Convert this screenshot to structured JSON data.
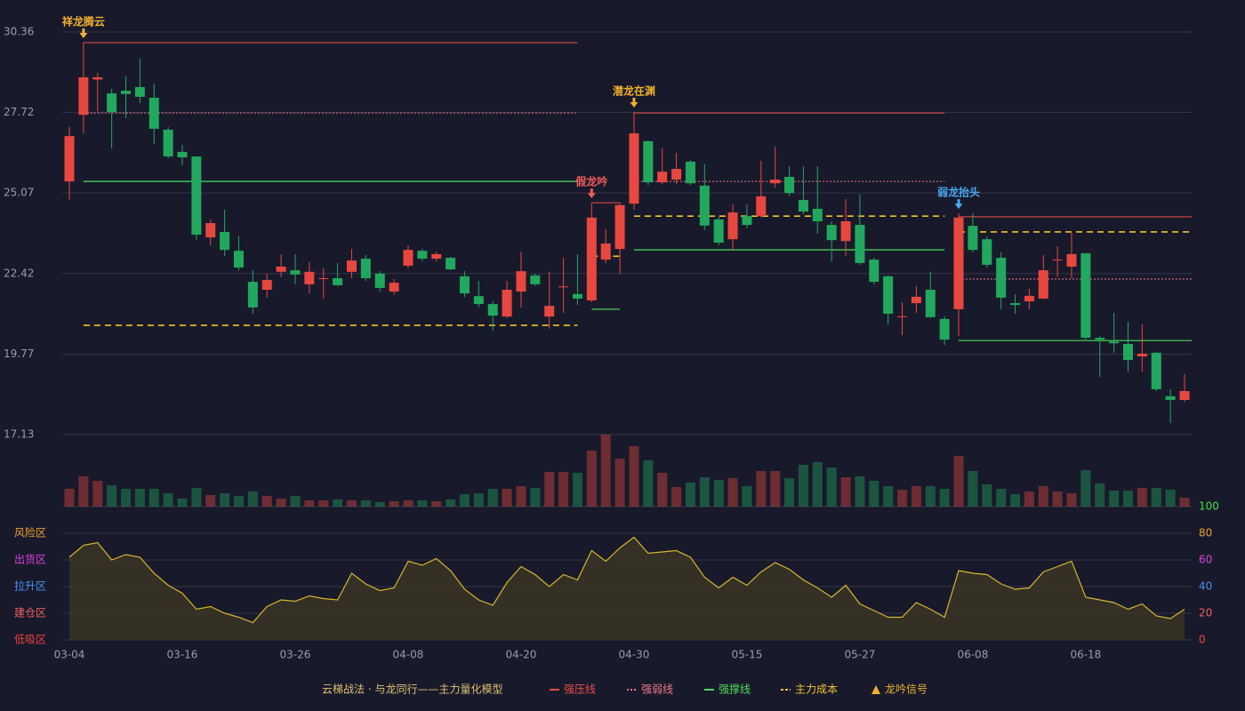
{
  "chart_data": [
    {
      "type": "candlestick",
      "categories": [
        "03-04",
        null,
        null,
        null,
        null,
        null,
        null,
        null,
        "03-16",
        null,
        null,
        null,
        null,
        null,
        null,
        null,
        "03-26",
        null,
        null,
        null,
        null,
        null,
        null,
        null,
        "04-08",
        null,
        null,
        null,
        null,
        null,
        null,
        null,
        "04-20",
        null,
        null,
        null,
        null,
        null,
        null,
        null,
        "04-30",
        null,
        null,
        null,
        null,
        null,
        null,
        null,
        "05-15",
        null,
        null,
        null,
        null,
        null,
        null,
        null,
        "05-27",
        null,
        null,
        null,
        null,
        null,
        null,
        null,
        "06-08",
        null,
        null,
        null,
        null,
        null,
        null,
        null,
        "06-18",
        null,
        null,
        null,
        null,
        null,
        null,
        null
      ],
      "open": [
        25.45,
        27.64,
        28.8,
        28.34,
        28.43,
        28.55,
        28.2,
        27.15,
        26.42,
        26.27,
        23.61,
        23.79,
        23.17,
        22.15,
        21.89,
        22.48,
        22.53,
        22.07,
        22.24,
        22.27,
        22.48,
        22.91,
        22.42,
        21.83,
        22.68,
        23.17,
        22.91,
        22.94,
        22.33,
        21.68,
        21.42,
        21.01,
        21.83,
        22.36,
        21.01,
        21.97,
        21.75,
        21.54,
        22.88,
        23.23,
        24.72,
        26.77,
        25.42,
        25.51,
        26.1,
        25.31,
        24.2,
        23.55,
        24.31,
        24.31,
        25.39,
        25.6,
        24.84,
        24.55,
        24.02,
        23.49,
        24.02,
        22.88,
        22.33,
        21.0,
        21.45,
        21.89,
        20.93,
        21.25,
        23.99,
        23.55,
        22.94,
        21.45,
        21.51,
        21.6,
        22.86,
        22.65,
        23.09,
        20.31,
        20.19,
        20.11,
        19.7,
        19.82,
        18.39,
        18.27
      ],
      "close": [
        26.94,
        28.87,
        28.87,
        27.73,
        28.32,
        28.23,
        27.18,
        26.27,
        26.24,
        23.7,
        24.08,
        23.2,
        22.62,
        21.31,
        22.21,
        22.65,
        22.39,
        22.48,
        22.27,
        22.04,
        22.85,
        22.27,
        21.95,
        22.12,
        23.2,
        22.91,
        23.06,
        22.56,
        21.77,
        21.42,
        21.04,
        21.89,
        22.5,
        22.07,
        21.36,
        22.0,
        21.6,
        24.26,
        23.41,
        24.67,
        27.03,
        25.42,
        25.77,
        25.86,
        25.39,
        24.0,
        23.44,
        24.43,
        24.02,
        24.96,
        25.51,
        25.07,
        24.46,
        24.14,
        23.52,
        24.14,
        22.77,
        22.15,
        21.1,
        21.02,
        21.66,
        20.99,
        20.25,
        24.26,
        23.2,
        22.71,
        21.63,
        21.39,
        21.69,
        22.53,
        22.88,
        23.06,
        20.31,
        20.25,
        20.13,
        19.58,
        19.79,
        18.62,
        18.27,
        18.56
      ],
      "high": [
        27.24,
        30.01,
        29.02,
        28.49,
        28.9,
        29.48,
        28.67,
        27.24,
        26.65,
        26.27,
        24.2,
        24.52,
        23.64,
        22.53,
        22.42,
        23.06,
        23.06,
        22.8,
        22.59,
        22.77,
        23.23,
        23.03,
        22.5,
        22.24,
        23.35,
        23.23,
        23.14,
        22.97,
        22.5,
        22.18,
        21.51,
        22.18,
        23.14,
        22.42,
        22.48,
        22.94,
        23.06,
        24.75,
        23.88,
        24.75,
        27.73,
        26.8,
        26.53,
        26.39,
        26.15,
        26.01,
        24.29,
        24.69,
        24.69,
        26.13,
        26.59,
        25.95,
        25.95,
        25.95,
        24.14,
        24.87,
        25.02,
        22.94,
        22.36,
        21.48,
        22.01,
        22.48,
        21.02,
        24.4,
        24.4,
        23.64,
        23.12,
        21.74,
        21.92,
        23.03,
        23.32,
        23.76,
        23.09,
        20.37,
        21.13,
        20.84,
        20.75,
        19.85,
        18.62,
        19.11
      ],
      "low": [
        24.84,
        27.03,
        27.76,
        26.53,
        27.53,
        28.02,
        26.68,
        26.21,
        25.98,
        23.53,
        23.35,
        23.0,
        22.53,
        21.1,
        21.63,
        22.3,
        22.07,
        21.77,
        21.6,
        22.01,
        22.27,
        22.18,
        21.83,
        21.74,
        22.59,
        22.82,
        22.82,
        22.53,
        21.65,
        21.31,
        20.55,
        20.96,
        21.31,
        22.01,
        20.61,
        21.13,
        21.39,
        21.48,
        22.77,
        22.42,
        24.52,
        25.33,
        25.36,
        25.36,
        25.33,
        23.85,
        23.35,
        23.2,
        23.91,
        24.26,
        25.25,
        24.96,
        24.37,
        23.73,
        22.82,
        23.0,
        22.71,
        22.07,
        20.75,
        20.4,
        21.13,
        20.96,
        20.08,
        20.37,
        23.12,
        22.62,
        21.25,
        21.1,
        21.25,
        21.57,
        22.3,
        22.27,
        20.25,
        19.03,
        19.82,
        19.2,
        19.2,
        18.56,
        17.51,
        18.21
      ],
      "up_color": "#e8473f",
      "down_color": "#22a85e",
      "ylim": [
        17.13,
        30.36
      ],
      "yticks": [
        30.36,
        27.72,
        25.07,
        22.42,
        19.77,
        17.13
      ],
      "grid": true,
      "signals": [
        null,
        {
          "label": "祥龙腾云",
          "color": "#f0b030"
        },
        null,
        null,
        null,
        null,
        null,
        null,
        null,
        null,
        null,
        null,
        null,
        null,
        null,
        null,
        null,
        null,
        null,
        null,
        null,
        null,
        null,
        null,
        null,
        null,
        null,
        null,
        null,
        null,
        null,
        null,
        null,
        null,
        null,
        null,
        null,
        {
          "label": "假龙吟",
          "color": "#f05a5a"
        },
        null,
        null,
        {
          "label": "潜龙在渊",
          "color": "#f0b030"
        },
        null,
        null,
        null,
        null,
        null,
        null,
        null,
        null,
        null,
        null,
        null,
        null,
        null,
        null,
        null,
        null,
        null,
        null,
        null,
        null,
        null,
        null,
        {
          "label": "弱龙抬头",
          "color": "#4aa8f0"
        },
        null,
        null,
        null,
        null,
        null,
        null,
        null,
        null,
        null,
        null,
        null,
        null,
        null,
        null,
        null,
        null
      ],
      "levels": [
        {
          "resistance": 30.01,
          "weak": 27.7,
          "support": 25.45,
          "cost": 20.72
        },
        {
          "resistance": 24.75,
          "weak": null,
          "support": 21.25,
          "cost": 22.99
        },
        {
          "resistance": 27.7,
          "weak": 25.45,
          "support": 23.2,
          "cost": 24.31
        },
        {
          "resistance": 24.29,
          "weak": 22.24,
          "support": 20.22,
          "cost": 23.79
        }
      ],
      "legend_title": "云梯战法 · 与龙同行——主力量化模型",
      "legend": [
        {
          "label": "强压线",
          "color": "#f04a4a"
        },
        {
          "label": "强弱线",
          "color": "#f07a8a"
        },
        {
          "label": "强撑线",
          "color": "#4cdc5c"
        },
        {
          "label": "主力成本",
          "color": "#f2c12e"
        },
        {
          "label": "龙吟信号",
          "color": "#f0b030"
        }
      ]
    },
    {
      "type": "bar",
      "values": [
        20,
        34,
        29,
        24,
        20,
        20,
        20,
        15,
        9,
        21,
        13,
        15,
        12,
        17,
        12,
        9,
        12,
        7,
        7,
        8,
        7,
        7,
        5,
        6,
        7,
        7,
        6,
        8,
        14,
        15,
        20,
        20,
        23,
        21,
        39,
        39,
        38,
        63,
        81,
        54,
        68,
        52,
        38,
        22,
        27,
        33,
        30,
        32,
        23,
        40,
        40,
        32,
        47,
        50,
        44,
        33,
        34,
        29,
        23,
        19,
        23,
        23,
        20,
        57,
        40,
        25,
        20,
        14,
        17,
        23,
        17,
        15,
        41,
        26,
        18,
        18,
        21,
        21,
        19,
        10
      ],
      "ylim": [
        0,
        81
      ]
    },
    {
      "type": "line",
      "values": [
        62,
        71,
        73,
        60,
        64,
        62,
        50,
        41,
        35,
        23,
        25,
        20,
        17,
        13,
        25,
        30,
        29,
        33,
        31,
        30,
        50,
        42,
        37,
        39,
        59,
        56,
        61,
        52,
        38,
        30,
        26,
        43,
        55,
        49,
        40,
        49,
        45,
        67,
        59,
        69,
        77,
        65,
        66,
        67,
        62,
        47,
        39,
        47,
        41,
        51,
        58,
        53,
        45,
        39,
        32,
        41,
        27,
        22,
        17,
        17,
        28,
        23,
        17,
        52,
        50,
        49,
        42,
        38,
        39,
        51,
        55,
        59,
        32,
        30,
        28,
        23,
        27,
        18,
        16,
        23
      ],
      "color": "#d9b52c",
      "ylim": [
        0,
        100
      ],
      "yticks": [
        0,
        20,
        40,
        60,
        80,
        100
      ],
      "ytick_colors": [
        "#f04040",
        "#f06060",
        "#4a90f0",
        "#e040e0",
        "#f0a030",
        "#40e040"
      ],
      "zones": [
        {
          "label": "风险区",
          "value": 80,
          "color": "#f0a030"
        },
        {
          "label": "出货区",
          "value": 60,
          "color": "#e040e0"
        },
        {
          "label": "拉升区",
          "value": 40,
          "color": "#4a90f0"
        },
        {
          "label": "建仓区",
          "value": 20,
          "color": "#f06060"
        },
        {
          "label": "低吸区",
          "value": 0,
          "color": "#f04040"
        }
      ]
    }
  ]
}
